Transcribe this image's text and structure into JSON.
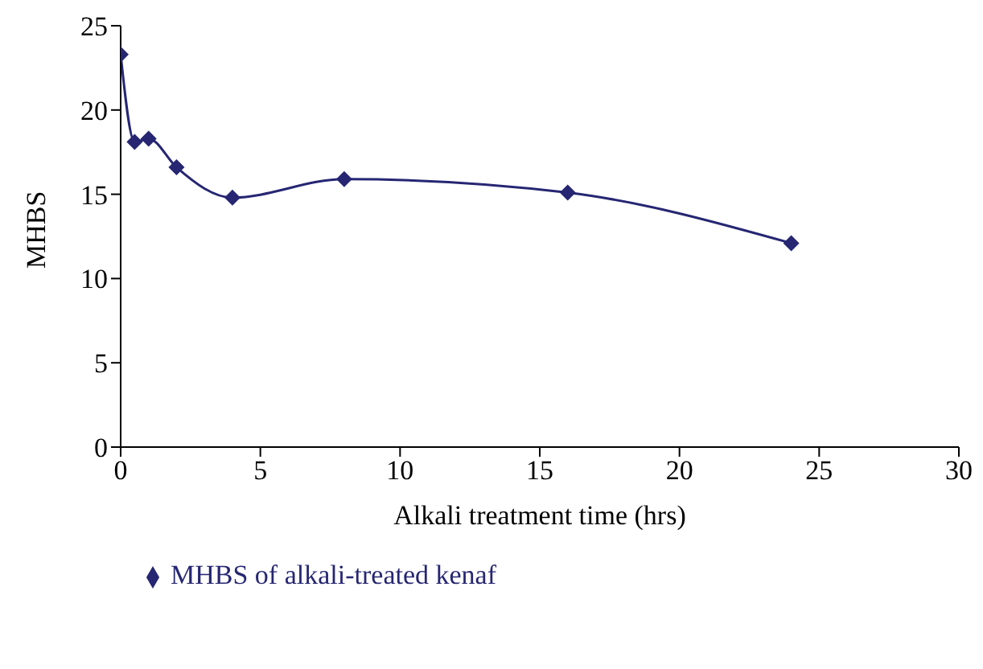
{
  "chart_data": {
    "type": "line",
    "xlabel": "Alkali treatment time (hrs)",
    "ylabel": "MHBS",
    "x": [
      0,
      0.5,
      1,
      2,
      4,
      8,
      16,
      24
    ],
    "series": [
      {
        "name": "MHBS of alkali-treated kenaf",
        "color": "#262673",
        "values": [
          23.3,
          18.1,
          18.3,
          16.6,
          14.8,
          15.9,
          15.1,
          12.1
        ]
      }
    ],
    "xlim": [
      0,
      30
    ],
    "xticks": [
      0,
      5,
      10,
      15,
      20,
      25,
      30
    ],
    "ylim": [
      0,
      25
    ],
    "yticks": [
      0,
      5,
      10,
      15,
      20,
      25
    ],
    "grid": false,
    "legend": "bottom",
    "marker": "diamond",
    "line_style": "solid"
  }
}
